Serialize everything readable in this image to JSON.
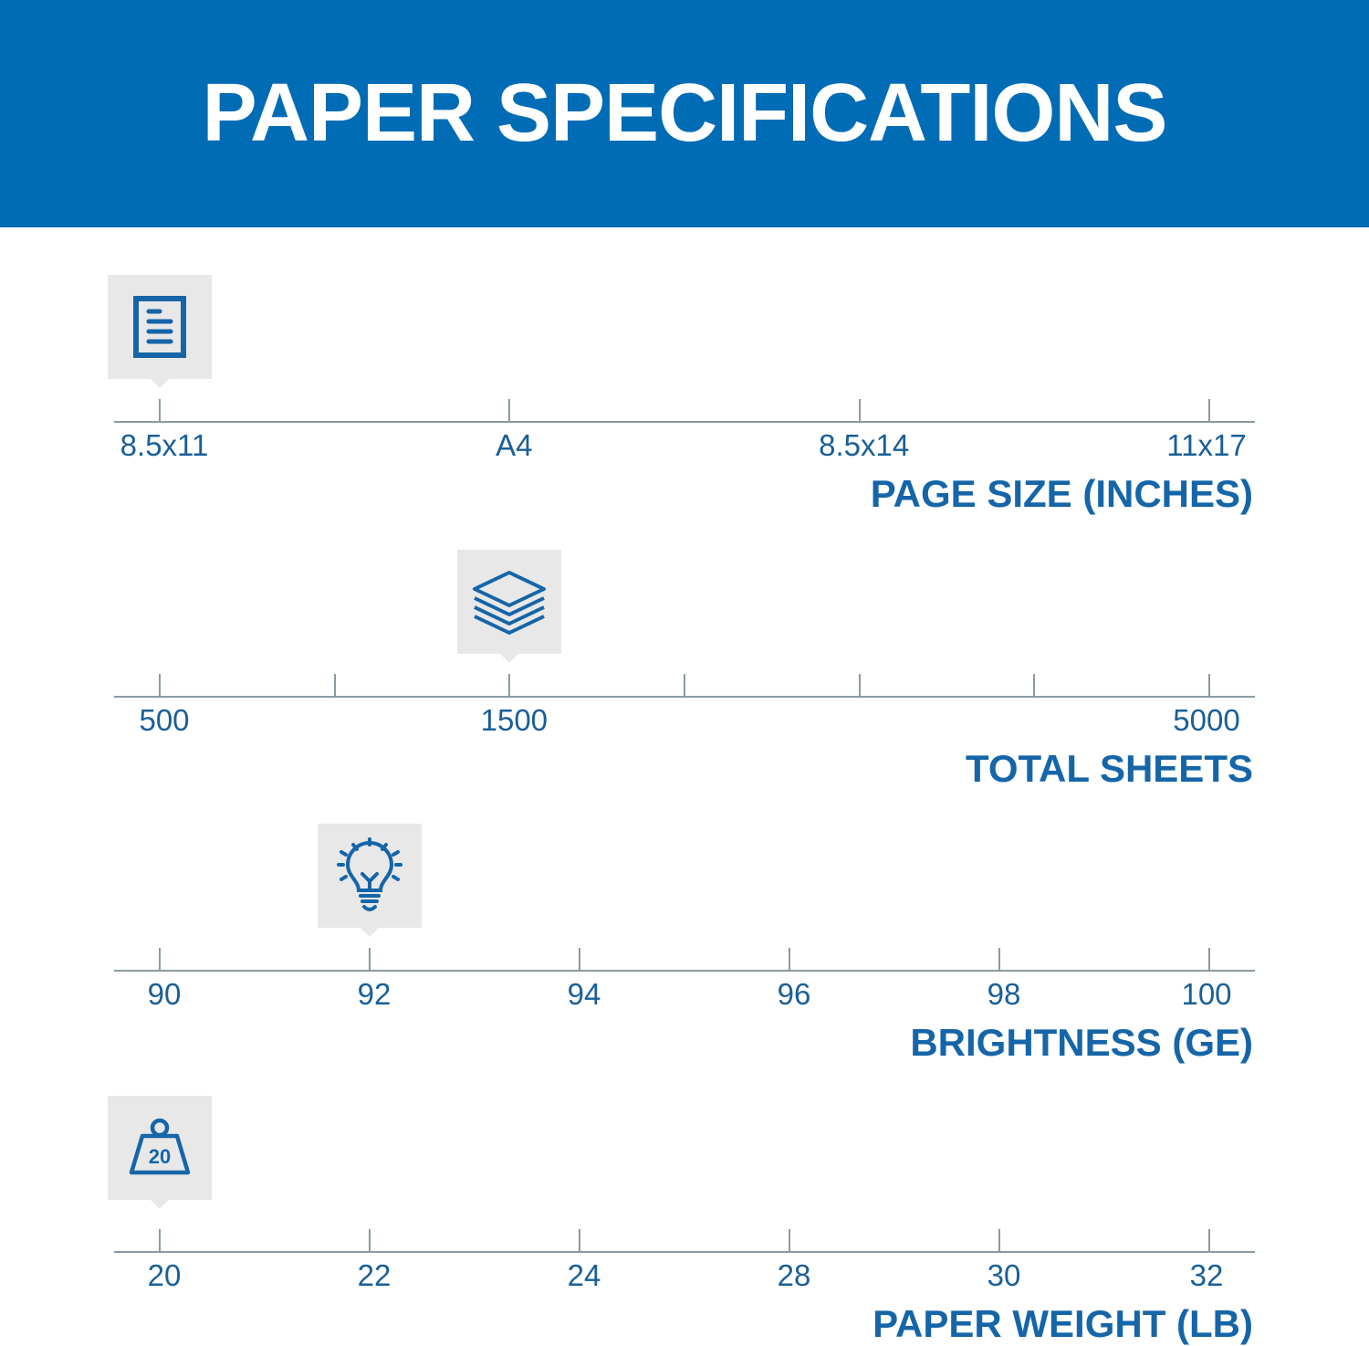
{
  "header": {
    "title": "PAPER SPECIFICATIONS"
  },
  "colors": {
    "brand_blue": "#006cb5",
    "text_blue": "#1565a8",
    "marker_bg": "#e8e8e8",
    "axis": "#8a9aa3"
  },
  "sections": [
    {
      "title": "PAGE SIZE (INCHES)",
      "icon": "document-icon",
      "ticks": [
        "8.5x11",
        "A4",
        "8.5x14",
        "11x17"
      ],
      "selected": 0
    },
    {
      "title": "TOTAL SHEETS",
      "icon": "paper-stack-icon",
      "ticks": [
        "500",
        "",
        "1500",
        "",
        "",
        "",
        "5000"
      ],
      "selected": 2
    },
    {
      "title": "BRIGHTNESS (GE)",
      "icon": "lightbulb-icon",
      "ticks": [
        "90",
        "92",
        "94",
        "96",
        "98",
        "100"
      ],
      "selected": 1
    },
    {
      "title": "PAPER WEIGHT (LB)",
      "icon": "weight-icon",
      "icon_text": "20",
      "ticks": [
        "20",
        "22",
        "24",
        "28",
        "30",
        "32"
      ],
      "selected": 0
    }
  ]
}
